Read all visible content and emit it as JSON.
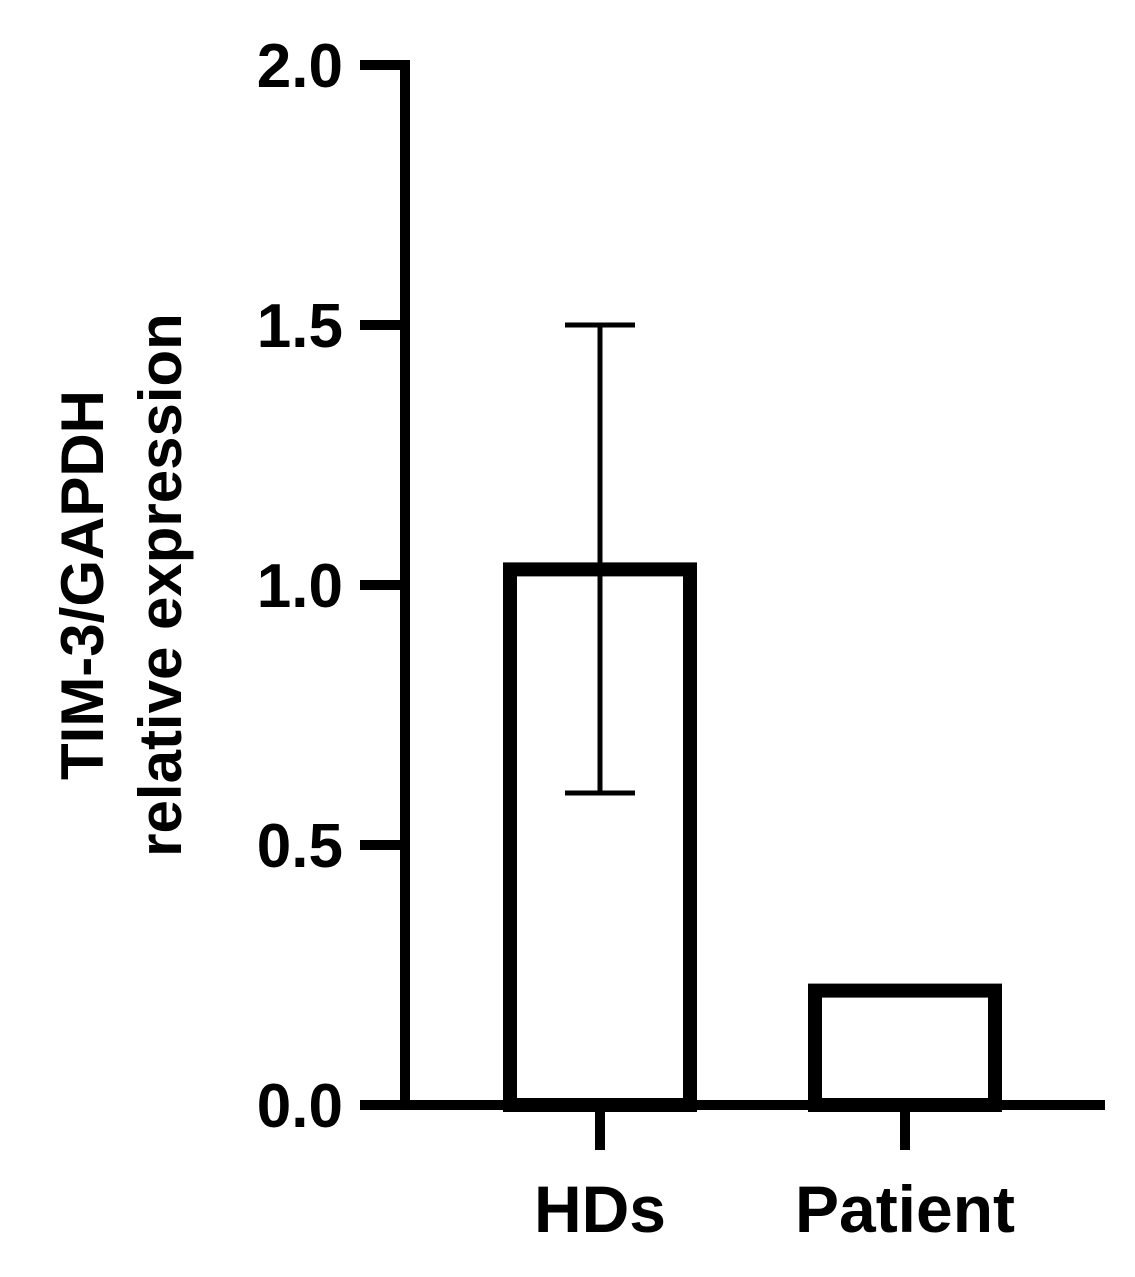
{
  "chart_data": {
    "type": "bar",
    "categories": [
      "HDs",
      "Patient"
    ],
    "values": [
      1.03,
      0.22
    ],
    "error_bars": [
      {
        "category": "HDs",
        "lower": 0.6,
        "upper": 1.5
      },
      null
    ],
    "ylabel_lines": [
      "TIM-3/GAPDH",
      "relative expression"
    ],
    "xlabel": "",
    "title": "",
    "ylim": [
      0,
      2.0
    ],
    "yticks": [
      0.0,
      0.5,
      1.0,
      1.5,
      2.0
    ],
    "ytick_labels": [
      "0.0",
      "0.5",
      "1.0",
      "1.5",
      "2.0"
    ],
    "grid": false,
    "bar_fill": "#ffffff",
    "bar_stroke": "#000000"
  }
}
